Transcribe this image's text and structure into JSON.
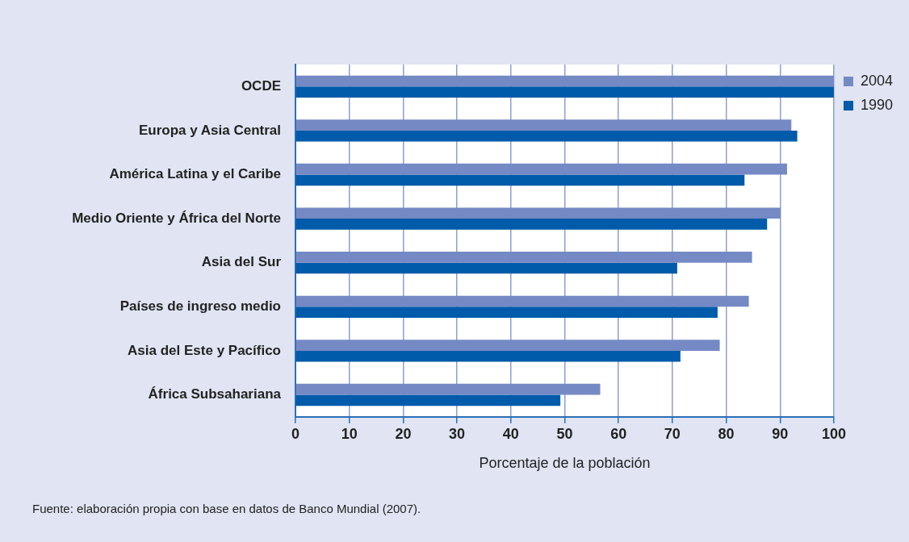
{
  "chart_data": {
    "type": "bar",
    "orientation": "horizontal",
    "xlabel": "Porcentaje de la población",
    "categories": [
      "OCDE",
      "Europa y Asia Central",
      "América Latina y el Caribe",
      "Medio Oriente y África del Norte",
      "Asia del Sur",
      "Países de ingreso medio",
      "Asia del Este y Pacífico",
      "África Subsahariana"
    ],
    "series": [
      {
        "name": "2004",
        "color": "#7589c5",
        "values": [
          100,
          92.1,
          91.3,
          90.1,
          84.8,
          84.2,
          78.8,
          56.6
        ]
      },
      {
        "name": "1990",
        "color": "#005baa",
        "values": [
          100,
          93.2,
          83.4,
          87.6,
          70.9,
          78.4,
          71.5,
          49.2
        ]
      }
    ],
    "xlim": [
      0,
      100
    ],
    "xticks": [
      0,
      10,
      20,
      30,
      40,
      50,
      60,
      70,
      80,
      90,
      100
    ],
    "grid": "x",
    "legend": "top right",
    "annotations": [
      "Fuente: elaboración propia con base en datos de Banco Mundial (2007)."
    ]
  }
}
